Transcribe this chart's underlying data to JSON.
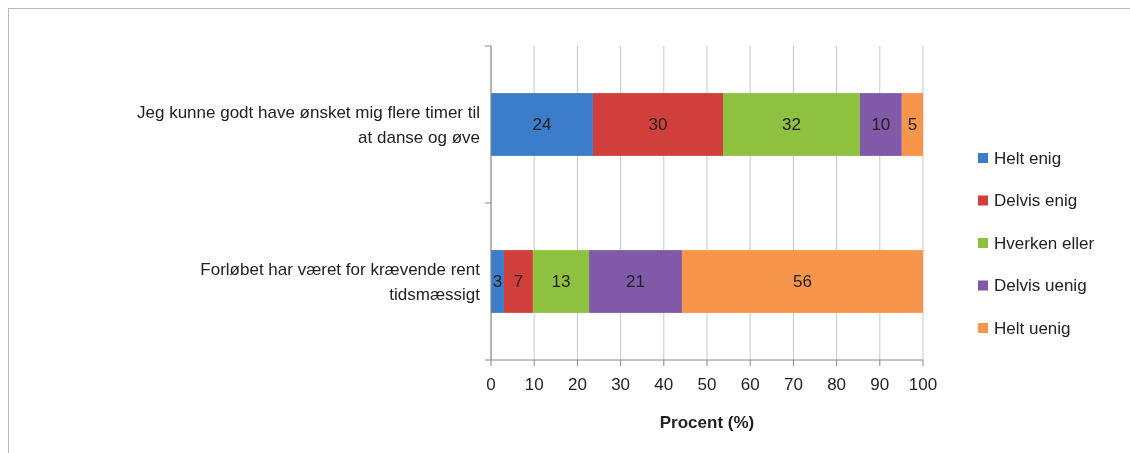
{
  "chart_data": {
    "type": "bar",
    "orientation": "horizontal",
    "stacked": true,
    "xlabel": "Procent (%)",
    "categories": [
      "Jeg kunne godt have ønsket mig flere timer til at danse og øve",
      "Forløbet har været for krævende rent tidsmæssigt"
    ],
    "series": [
      {
        "name": "Helt enig",
        "color": "#3b7dc8",
        "values": [
          23.6,
          3.0
        ],
        "value_labels": [
          "24",
          "3"
        ]
      },
      {
        "name": "Delvis enig",
        "color": "#d13f3c",
        "values": [
          30.1,
          6.7
        ],
        "value_labels": [
          "30",
          "7"
        ]
      },
      {
        "name": "Hverken eller",
        "color": "#8fc140",
        "values": [
          31.7,
          13.0
        ],
        "value_labels": [
          "32",
          "13"
        ]
      },
      {
        "name": "Delvis uenig",
        "color": "#8059a8",
        "values": [
          9.7,
          21.5
        ],
        "value_labels": [
          "10",
          "21"
        ]
      },
      {
        "name": "Helt uenig",
        "color": "#f7964a",
        "values": [
          4.9,
          55.8
        ],
        "value_labels": [
          "5",
          "56"
        ]
      }
    ],
    "xlim": [
      0,
      100
    ],
    "xticks": [
      0,
      10,
      20,
      30,
      40,
      50,
      60,
      70,
      80,
      90,
      100
    ],
    "grid": "x",
    "legend": "right"
  }
}
